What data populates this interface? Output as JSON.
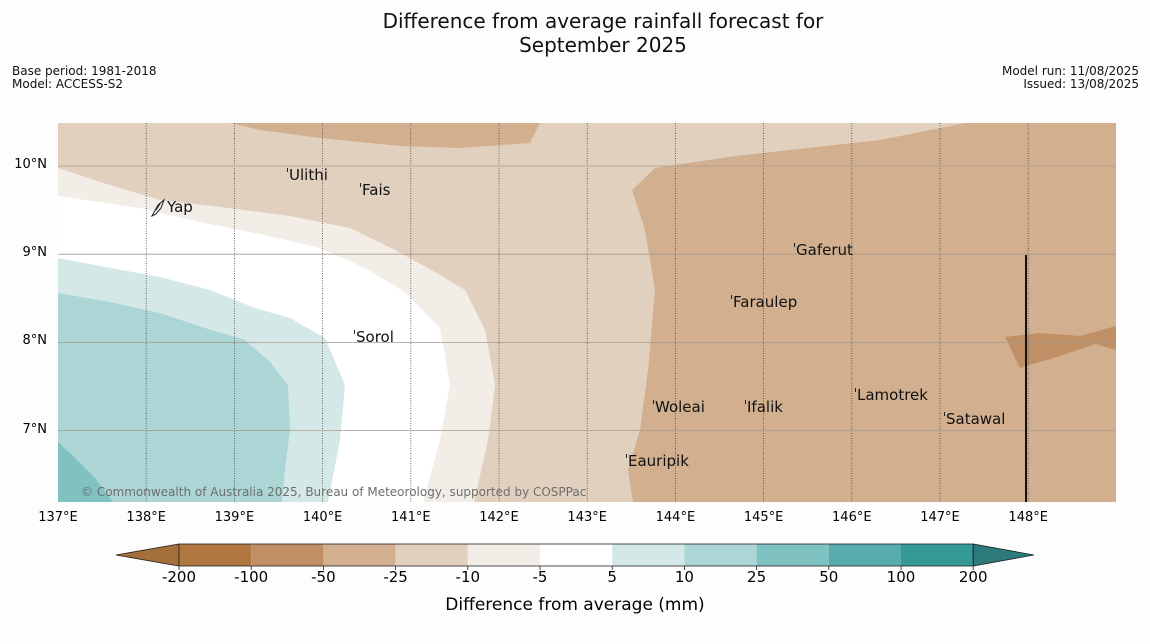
{
  "title": {
    "line1": "Difference from average rainfall forecast for",
    "line2": "September 2025"
  },
  "meta": {
    "base_period": "Base period: 1981-2018",
    "model": "Model: ACCESS-S2",
    "model_run": "Model run: 11/08/2025",
    "issued": "Issued: 13/08/2025"
  },
  "copyright": "© Commonwealth of Australia 2025, Bureau of Meteorology, supported by COSPPac",
  "map": {
    "lon_ticks": [
      "137°E",
      "138°E",
      "139°E",
      "140°E",
      "141°E",
      "142°E",
      "143°E",
      "144°E",
      "145°E",
      "146°E",
      "147°E",
      "148°E"
    ],
    "lat_ticks": [
      "10°N",
      "9°N",
      "8°N",
      "7°N"
    ],
    "places": [
      {
        "name": "Ulithi"
      },
      {
        "name": "Fais"
      },
      {
        "name": "Yap"
      },
      {
        "name": "Gaferut"
      },
      {
        "name": "Faraulep"
      },
      {
        "name": "Sorol"
      },
      {
        "name": "Lamotrek"
      },
      {
        "name": "Woleai"
      },
      {
        "name": "Ifalik"
      },
      {
        "name": "Satawal"
      },
      {
        "name": "Eauripik"
      }
    ]
  },
  "colorbar": {
    "label": "Difference from average (mm)",
    "ticks": [
      "-200",
      "-100",
      "-50",
      "-25",
      "-10",
      "-5",
      "5",
      "10",
      "25",
      "50",
      "100",
      "200"
    ],
    "colors": [
      "#a46f3a",
      "#b07840",
      "#c08f66",
      "#d2b08f",
      "#e2d0bf",
      "#f2ede7",
      "#ffffff",
      "#d4e9e7",
      "#acd6d5",
      "#80c1c1",
      "#58acad",
      "#359998",
      "#2c7b7a"
    ]
  }
}
